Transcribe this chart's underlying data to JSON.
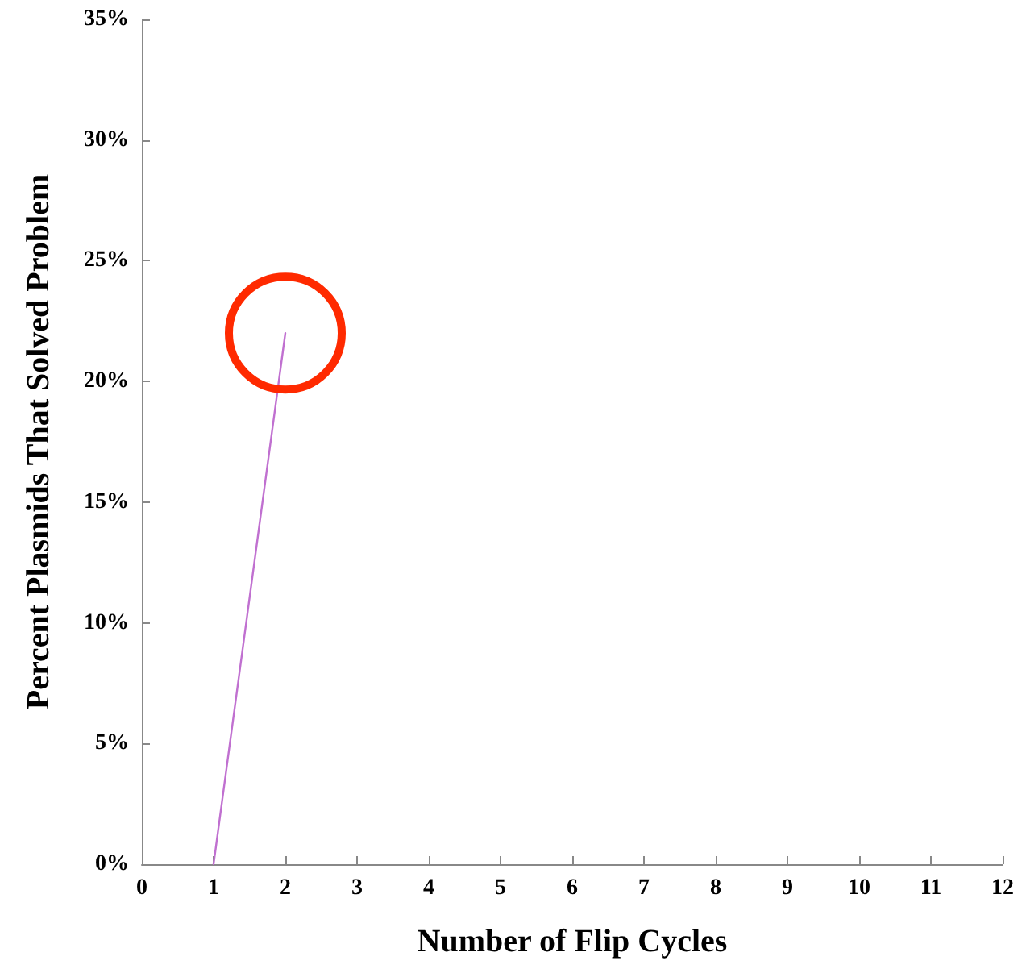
{
  "chart_data": {
    "type": "line",
    "xlabel": "Number of Flip Cycles",
    "ylabel": "Percent Plasmids That Solved Problem",
    "series": [
      {
        "color": "#c070d0",
        "x": [
          1,
          2
        ],
        "values": [
          0,
          22
        ]
      }
    ],
    "xlim": [
      0,
      12
    ],
    "xticks": [
      0,
      1,
      2,
      3,
      4,
      5,
      6,
      7,
      8,
      9,
      10,
      11,
      12
    ],
    "ylim": [
      0,
      35
    ],
    "yticks": [
      {
        "value": 0,
        "label": "0%"
      },
      {
        "value": 5,
        "label": "5%"
      },
      {
        "value": 10,
        "label": "10%"
      },
      {
        "value": 15,
        "label": "15%"
      },
      {
        "value": 20,
        "label": "20%"
      },
      {
        "value": 25,
        "label": "25%"
      },
      {
        "value": 30,
        "label": "30%"
      },
      {
        "value": 35,
        "label": "35%"
      }
    ],
    "grid": false,
    "marker": "none",
    "line_style": "solid"
  }
}
